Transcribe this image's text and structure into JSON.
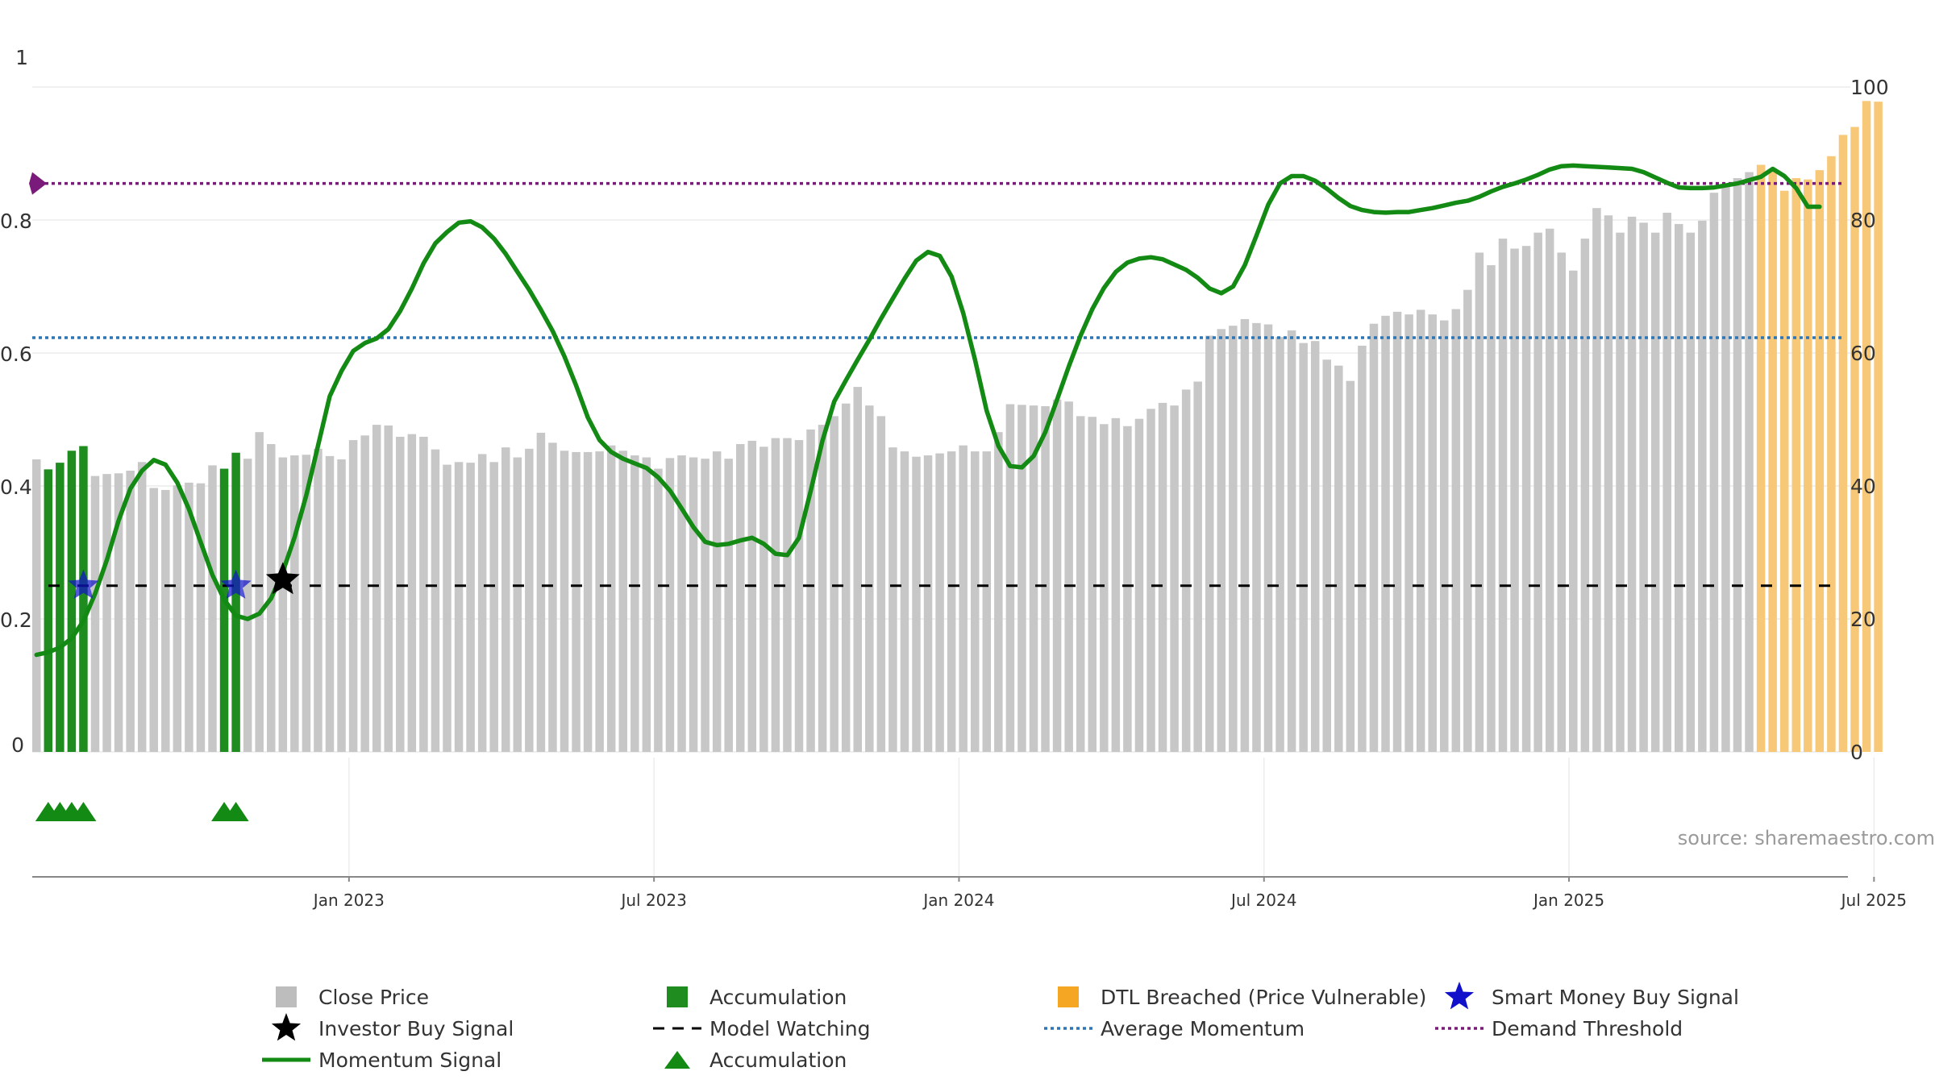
{
  "chart_data": {
    "type": "bar",
    "title": "",
    "source": "source: sharemaestro.com",
    "left_axis": {
      "ticks": [
        "0",
        "0.2",
        "0.4",
        "0.6",
        "0.8",
        "1"
      ],
      "range": [
        0,
        1
      ]
    },
    "right_axis": {
      "ticks": [
        "0",
        "20",
        "40",
        "60",
        "80",
        "100"
      ],
      "range": [
        0,
        100
      ]
    },
    "x_ticks": [
      {
        "label": "Jan 2023",
        "index": 27
      },
      {
        "label": "Jul 2023",
        "index": 53
      },
      {
        "label": "Jan 2024",
        "index": 79
      },
      {
        "label": "Jul 2024",
        "index": 105
      },
      {
        "label": "Jan 2025",
        "index": 131
      },
      {
        "label": "Jul 2025",
        "index": 157
      }
    ],
    "close_price": [
      44,
      42.5,
      43.5,
      45.3,
      46,
      41.5,
      41.8,
      41.9,
      42.3,
      43.6,
      39.7,
      39.4,
      40.1,
      40.5,
      40.4,
      43.1,
      42.6,
      45,
      44.1,
      48.1,
      46.3,
      44.3,
      44.6,
      44.7,
      45.6,
      44.5,
      44,
      46.9,
      47.6,
      49.2,
      49.1,
      47.4,
      47.8,
      47.4,
      45.5,
      43.2,
      43.6,
      43.5,
      44.8,
      43.6,
      45.8,
      44.3,
      45.6,
      48,
      46.5,
      45.3,
      45.1,
      45.1,
      45.2,
      46.1,
      45.3,
      44.6,
      44.3,
      42.6,
      44.2,
      44.6,
      44.3,
      44.1,
      45.2,
      44.1,
      46.3,
      46.8,
      45.9,
      47.2,
      47.2,
      46.9,
      48.5,
      49.2,
      50.5,
      52.4,
      54.9,
      52.1,
      50.5,
      45.8,
      45.2,
      44.4,
      44.6,
      44.9,
      45.2,
      46.1,
      45.2,
      45.2,
      48.1,
      52.3,
      52.2,
      52.1,
      52,
      53,
      52.7,
      50.5,
      50.4,
      49.3,
      50.2,
      49,
      50.1,
      51.6,
      52.5,
      52.1,
      54.5,
      55.7,
      62.6,
      63.6,
      64.1,
      65.1,
      64.5,
      64.3,
      62.4,
      63.4,
      61.5,
      61.8,
      59,
      58.1,
      55.8,
      61.1,
      64.4,
      65.6,
      66.2,
      65.8,
      66.5,
      65.8,
      64.9,
      66.6,
      69.5,
      75.1,
      73.2,
      77.2,
      75.7,
      76.1,
      78.1,
      78.7,
      75.1,
      72.4,
      77.2,
      81.8,
      80.7,
      78.1,
      80.5,
      79.6,
      78.1,
      81.1,
      79.4,
      78.1,
      79.9,
      84.1,
      85.4,
      86.3,
      87.2,
      88.3,
      87.5,
      84.4,
      86.3,
      86.1,
      87.5,
      89.6,
      92.8,
      94,
      97.9,
      97.8
    ],
    "max_price": 100,
    "accumulation_bars": [
      1,
      2,
      3,
      4,
      16,
      17
    ],
    "dtl_start_index": 147,
    "momentum": [
      0.146,
      0.15,
      0.157,
      0.171,
      0.197,
      0.238,
      0.289,
      0.348,
      0.396,
      0.423,
      0.439,
      0.432,
      0.405,
      0.365,
      0.315,
      0.266,
      0.229,
      0.205,
      0.2,
      0.208,
      0.231,
      0.271,
      0.323,
      0.386,
      0.461,
      0.535,
      0.573,
      0.603,
      0.615,
      0.622,
      0.636,
      0.663,
      0.697,
      0.735,
      0.765,
      0.782,
      0.796,
      0.798,
      0.789,
      0.772,
      0.749,
      0.722,
      0.695,
      0.665,
      0.633,
      0.595,
      0.551,
      0.503,
      0.469,
      0.451,
      0.441,
      0.434,
      0.427,
      0.413,
      0.393,
      0.366,
      0.338,
      0.316,
      0.311,
      0.313,
      0.318,
      0.322,
      0.313,
      0.298,
      0.296,
      0.322,
      0.393,
      0.468,
      0.527,
      0.559,
      0.59,
      0.62,
      0.652,
      0.682,
      0.712,
      0.739,
      0.752,
      0.746,
      0.715,
      0.66,
      0.59,
      0.513,
      0.46,
      0.43,
      0.428,
      0.445,
      0.481,
      0.53,
      0.58,
      0.626,
      0.666,
      0.698,
      0.722,
      0.736,
      0.742,
      0.744,
      0.741,
      0.733,
      0.725,
      0.713,
      0.697,
      0.69,
      0.7,
      0.732,
      0.777,
      0.823,
      0.855,
      0.866,
      0.866,
      0.859,
      0.847,
      0.833,
      0.821,
      0.815,
      0.812,
      0.811,
      0.812,
      0.812,
      0.815,
      0.818,
      0.822,
      0.826,
      0.829,
      0.835,
      0.843,
      0.85,
      0.855,
      0.861,
      0.868,
      0.876,
      0.881,
      0.882,
      0.881,
      0.88,
      0.879,
      0.878,
      0.877,
      0.872,
      0.864,
      0.856,
      0.849,
      0.848,
      0.848,
      0.849,
      0.852,
      0.855,
      0.86,
      0.865,
      0.877,
      0.866,
      0.848,
      0.82,
      0.82
    ],
    "average_momentum": 0.623,
    "demand_threshold": 0.855,
    "model_watching": 0.25,
    "smart_money_buy_indices": [
      4,
      17
    ],
    "investor_buy_indices": [
      21
    ],
    "accumulation_triangle_indices": [
      1,
      2,
      3,
      4,
      16,
      17
    ],
    "legend": [
      {
        "label": "Close Price",
        "marker": "gray-square",
        "color": "#BDBDBD"
      },
      {
        "label": "Investor Buy Signal",
        "marker": "black-star",
        "color": "#000000"
      },
      {
        "label": "Momentum Signal",
        "marker": "green-line",
        "color": "#138A13"
      },
      {
        "label": "Accumulation",
        "marker": "green-square",
        "color": "#1E8C1E"
      },
      {
        "label": "Model Watching",
        "marker": "black-dash",
        "color": "#000000"
      },
      {
        "label": "Accumulation",
        "marker": "green-triangle",
        "color": "#138A13"
      },
      {
        "label": "DTL Breached (Price Vulnerable)",
        "marker": "orange-square",
        "color": "#F5A623"
      },
      {
        "label": "Average Momentum",
        "marker": "blue-dotted-line",
        "color": "#2E75B6"
      },
      {
        "label": "Smart Money Buy Signal",
        "marker": "blue-star",
        "color": "#1111CC"
      },
      {
        "label": "Demand Threshold",
        "marker": "purple-dotted-line",
        "color": "#7A1A7A"
      }
    ],
    "colors": {
      "close_price": "#C7C7C7",
      "accumulation": "#1E8C1E",
      "dtl": "#F7C878",
      "momentum": "#138A13",
      "average_momentum": "#2E75B6",
      "demand_threshold": "#7A1A7A",
      "model_watching": "#000000",
      "smart_money": "#1111CC",
      "investor": "#000000"
    }
  }
}
